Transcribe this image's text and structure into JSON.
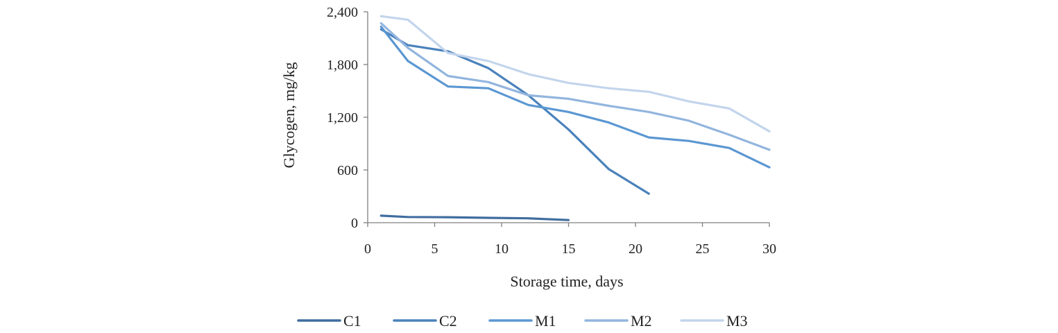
{
  "chart_data": {
    "type": "line",
    "xlabel": "Storage time,  days",
    "ylabel": "Glycogen,  mg/kg",
    "xlim": [
      0,
      30
    ],
    "ylim": [
      0,
      2400
    ],
    "x_ticks": [
      0,
      5,
      10,
      15,
      20,
      25,
      30
    ],
    "x_tick_labels": [
      "0",
      "5",
      "10",
      "15",
      "20",
      "25",
      "30"
    ],
    "y_ticks": [
      0,
      600,
      1200,
      1800,
      2400
    ],
    "y_tick_labels": [
      "0",
      "600",
      "1,200",
      "1,800",
      "2,400"
    ],
    "grid": false,
    "legend_position": "bottom",
    "series": [
      {
        "name": "C1",
        "color": "#3f6d9f",
        "x": [
          1,
          3,
          6,
          9,
          12,
          15
        ],
        "y": [
          80,
          65,
          62,
          55,
          50,
          30
        ]
      },
      {
        "name": "C2",
        "color": "#4a82bb",
        "x": [
          1,
          3,
          6,
          9,
          12,
          15,
          18,
          21
        ],
        "y": [
          2200,
          2020,
          1950,
          1760,
          1450,
          1060,
          610,
          330
        ]
      },
      {
        "name": "M1",
        "color": "#5b97d2",
        "x": [
          1,
          3,
          6,
          9,
          12,
          15,
          18,
          21,
          24,
          27,
          30
        ],
        "y": [
          2230,
          1840,
          1550,
          1530,
          1340,
          1260,
          1140,
          970,
          930,
          850,
          630
        ]
      },
      {
        "name": "M2",
        "color": "#92b5de",
        "x": [
          1,
          3,
          6,
          9,
          12,
          15,
          18,
          21,
          24,
          27,
          30
        ],
        "y": [
          2270,
          1990,
          1670,
          1600,
          1450,
          1410,
          1330,
          1260,
          1160,
          1000,
          830
        ]
      },
      {
        "name": "M3",
        "color": "#c3d5ec",
        "x": [
          1,
          3,
          6,
          9,
          12,
          15,
          18,
          21,
          24,
          27,
          30
        ],
        "y": [
          2350,
          2310,
          1930,
          1840,
          1690,
          1590,
          1530,
          1490,
          1380,
          1300,
          1040
        ]
      }
    ]
  }
}
